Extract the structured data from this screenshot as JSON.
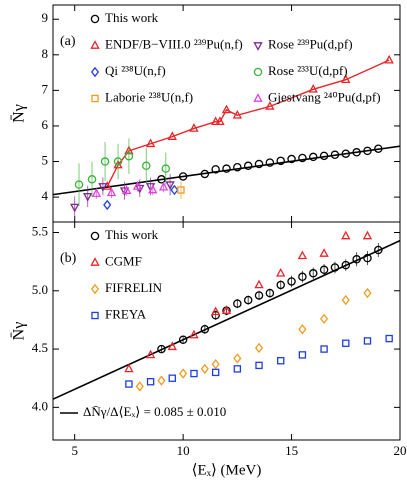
{
  "chart_data": [
    {
      "type": "scatter",
      "panel_label": "(a)",
      "ylabel": "N̄γ",
      "xlim": [
        4,
        20
      ],
      "xticks": [
        5,
        10,
        15,
        20
      ],
      "ylim": [
        3.3,
        9.4
      ],
      "yticks": [
        4,
        5,
        6,
        7,
        8,
        9
      ],
      "legend": "upper left",
      "legend_columns": 2,
      "series": [
        {
          "name": "This work",
          "color": "#000000",
          "marker": "circle",
          "x": [
            9,
            10,
            11,
            11.5,
            12,
            12.5,
            13,
            13.5,
            14,
            14.5,
            15,
            15.5,
            16,
            16.5,
            17,
            17.5,
            18,
            18.5,
            19
          ],
          "values": [
            4.5,
            4.58,
            4.65,
            4.78,
            4.8,
            4.84,
            4.88,
            4.93,
            4.97,
            5.02,
            5.07,
            5.1,
            5.13,
            5.16,
            5.19,
            5.22,
            5.26,
            5.3,
            5.36
          ]
        },
        {
          "color": "#000000",
          "line": true,
          "x": [
            4,
            20
          ],
          "values": [
            4.07,
            5.43
          ]
        },
        {
          "name": "ENDF/B−VIII.0 ²³⁹Pu(n,f)",
          "color": "#e8262a",
          "marker": "triangle-up",
          "line": true,
          "x": [
            6.5,
            7,
            7.5,
            8.5,
            9.5,
            10.5,
            11.5,
            11.7,
            12,
            12.5,
            14,
            16,
            17.5,
            19.5
          ],
          "values": [
            4.3,
            4.9,
            5.3,
            5.5,
            5.7,
            5.93,
            6.12,
            6.12,
            6.45,
            6.3,
            6.55,
            7.03,
            7.3,
            7.85
          ]
        },
        {
          "name": "Qi ²³⁸U(n,f)",
          "color": "#1f3ee0",
          "marker": "diamond",
          "x": [
            6.5,
            9.6
          ],
          "values": [
            3.78,
            4.2
          ]
        },
        {
          "name": "Laborie ²³⁸U(n,f)",
          "color": "#f39a1e",
          "marker": "square",
          "x": [
            9.9
          ],
          "values": [
            4.2
          ],
          "errors": [
            0.25
          ]
        },
        {
          "name": "Rose ²³⁹Pu(d,pf)",
          "color": "#7a2a8c",
          "marker": "triangle-down",
          "x": [
            5,
            5.6,
            6.3,
            7.3,
            8,
            8.5,
            9.4
          ],
          "values": [
            3.72,
            4.02,
            4.3,
            4.18,
            4.25,
            4.3,
            4.35
          ],
          "errors": [
            0.3,
            0.3,
            0.25,
            0.25,
            0.25,
            0.25,
            0.3
          ]
        },
        {
          "name": "Rose ²³³U(d,pf)",
          "color": "#3cb43c",
          "marker": "circle",
          "x": [
            5.2,
            5.8,
            6.4,
            7,
            7.5,
            8.3,
            9.2
          ],
          "values": [
            4.35,
            4.5,
            5.0,
            5.0,
            5.15,
            4.88,
            4.8
          ],
          "errors": [
            0.6,
            0.5,
            0.55,
            0.5,
            0.5,
            0.5,
            0.45
          ]
        },
        {
          "name": "Gjestvang ²⁴⁰Pu(d,pf)",
          "color": "#e040e0",
          "marker": "triangle-up",
          "x": [
            6,
            6.7,
            7.4,
            7.9,
            8.6,
            9.1
          ],
          "values": [
            4.1,
            4.12,
            4.18,
            4.3,
            4.2,
            4.28
          ],
          "errors": [
            0.15,
            0.15,
            0.15,
            0.15,
            0.15,
            0.15
          ]
        }
      ]
    },
    {
      "type": "scatter",
      "panel_label": "(b)",
      "ylabel": "N̄γ",
      "xlabel": "⟨Eₓ⟩ (MeV)",
      "xlim": [
        4,
        20
      ],
      "xticks": [
        5,
        10,
        15,
        20
      ],
      "ylim": [
        3.72,
        5.59
      ],
      "yticks": [
        {
          "value": 4,
          "label": "4.0"
        },
        {
          "value": 4.5,
          "label": "4.5"
        },
        {
          "value": 5,
          "label": "5.0"
        },
        {
          "value": 5.5,
          "label": "5.5"
        }
      ],
      "legend": "upper left",
      "legend_columns": 1,
      "series": [
        {
          "name": "This work",
          "color": "#000000",
          "marker": "circle",
          "x": [
            9,
            10,
            11,
            11.5,
            12,
            12.5,
            13,
            13.5,
            14,
            14.5,
            15,
            15.5,
            16,
            16.5,
            17,
            17.5,
            18,
            18.5,
            19
          ],
          "values": [
            4.5,
            4.58,
            4.67,
            4.79,
            4.83,
            4.89,
            4.92,
            4.96,
            4.98,
            5.05,
            5.08,
            5.12,
            5.15,
            5.18,
            5.2,
            5.22,
            5.27,
            5.28,
            5.35
          ],
          "errors": [
            0.03,
            0.03,
            0.04,
            0.04,
            0.04,
            0.04,
            0.04,
            0.04,
            0.04,
            0.04,
            0.05,
            0.05,
            0.05,
            0.05,
            0.05,
            0.05,
            0.06,
            0.06,
            0.06
          ]
        },
        {
          "name": "ΔN̄γ/Δ⟨Eₓ⟩ = 0.085 ± 0.010",
          "color": "#000000",
          "line": true,
          "x": [
            4,
            20
          ],
          "values": [
            4.07,
            5.43
          ]
        },
        {
          "name": "CGMF",
          "color": "#e8262a",
          "marker": "triangle-up",
          "x": [
            7.5,
            8.5,
            9.5,
            10.5,
            11.5,
            12,
            13.5,
            14.5,
            15.5,
            16.5,
            17.5,
            18.5
          ],
          "values": [
            4.33,
            4.45,
            4.52,
            4.62,
            4.82,
            4.83,
            5.05,
            5.15,
            5.3,
            5.32,
            5.47,
            5.47
          ]
        },
        {
          "name": "FIFRELIN",
          "color": "#f39a1e",
          "marker": "diamond",
          "x": [
            8,
            9,
            10,
            11,
            11.5,
            12.5,
            13.5,
            15.5,
            16.5,
            17.5,
            18.5
          ],
          "values": [
            4.18,
            4.23,
            4.29,
            4.33,
            4.37,
            4.42,
            4.51,
            4.67,
            4.76,
            4.92,
            4.98
          ]
        },
        {
          "name": "FREYA",
          "color": "#1f3ee0",
          "marker": "square",
          "x": [
            7.5,
            8.5,
            9.5,
            10.5,
            11.5,
            12.5,
            13.5,
            14.5,
            15.5,
            16.5,
            17.5,
            18.5,
            19.5
          ],
          "values": [
            4.2,
            4.22,
            4.25,
            4.29,
            4.3,
            4.33,
            4.36,
            4.4,
            4.45,
            4.5,
            4.55,
            4.57,
            4.59
          ]
        }
      ]
    }
  ]
}
